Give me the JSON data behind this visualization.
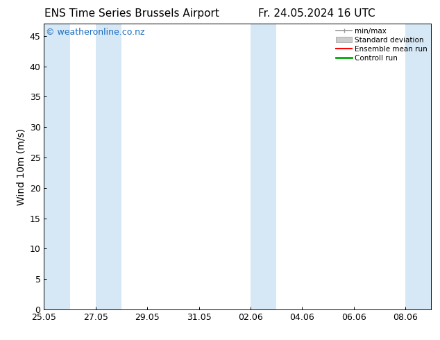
{
  "title_left": "ENS Time Series Brussels Airport",
  "title_right": "Fr. 24.05.2024 16 UTC",
  "ylabel": "Wind 10m (m/s)",
  "watermark": "© weatheronline.co.nz",
  "ylim": [
    0,
    47
  ],
  "yticks": [
    0,
    5,
    10,
    15,
    20,
    25,
    30,
    35,
    40,
    45
  ],
  "xtick_labels": [
    "25.05",
    "27.05",
    "29.05",
    "31.05",
    "02.06",
    "04.06",
    "06.06",
    "08.06"
  ],
  "xtick_positions": [
    0,
    2,
    4,
    6,
    8,
    10,
    12,
    14
  ],
  "xlim": [
    0,
    15
  ],
  "shaded_bands": [
    [
      0,
      1
    ],
    [
      2,
      3
    ],
    [
      8,
      9
    ],
    [
      14,
      15
    ]
  ],
  "band_color": "#d6e8f5",
  "background_color": "#ffffff",
  "legend_items": [
    {
      "label": "min/max",
      "style": "minmax",
      "color": "#999999",
      "lw": 1.2
    },
    {
      "label": "Standard deviation",
      "style": "std",
      "color": "#bbbbbb",
      "lw": 4
    },
    {
      "label": "Ensemble mean run",
      "style": "line",
      "color": "#ff0000",
      "lw": 1.5
    },
    {
      "label": "Controll run",
      "style": "line",
      "color": "#00aa00",
      "lw": 2
    }
  ],
  "title_fontsize": 11,
  "axis_label_fontsize": 10,
  "tick_fontsize": 9,
  "watermark_color": "#1a6bbf",
  "watermark_fontsize": 9
}
